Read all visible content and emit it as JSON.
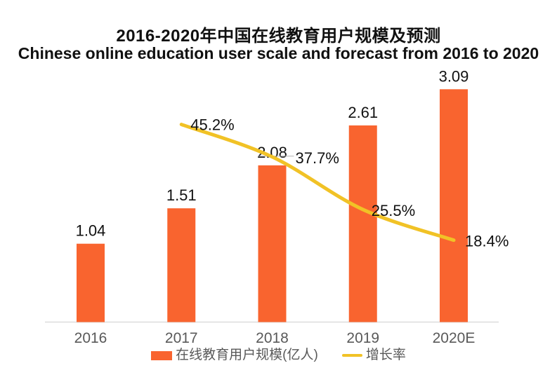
{
  "chart_data": {
    "type": "bar+line combo",
    "title": "2016-2020年中国在线教育用户规模及预测",
    "subtitle": "Chinese online education user scale and forecast from 2016 to 2020",
    "categories": [
      "2016",
      "2017",
      "2018",
      "2019",
      "2020E"
    ],
    "series": [
      {
        "name": "在线教育用户规模(亿人)",
        "type": "bar",
        "values": [
          1.04,
          1.51,
          2.08,
          2.61,
          3.09
        ],
        "labels": [
          "1.04",
          "1.51",
          "2.08",
          "2.61",
          "3.09"
        ],
        "color": "#F9642F"
      },
      {
        "name": "增长率",
        "type": "line",
        "values": [
          null,
          45.2,
          37.7,
          25.5,
          18.4
        ],
        "labels": [
          null,
          "45.2%",
          "37.7%",
          "25.5%",
          "18.4%"
        ],
        "color": "#F1C226"
      }
    ],
    "left_ylim": [
      0,
      3.3
    ],
    "right_ylim": [
      0,
      55
    ],
    "grid": false,
    "legend_position": "bottom",
    "colors": {
      "bar": "#F9642F",
      "line": "#F1C226",
      "axis_line": "#dcdcdc",
      "axis_label": "#595959",
      "value_label": "#111111",
      "leader_line": "#b3b3b3"
    }
  }
}
